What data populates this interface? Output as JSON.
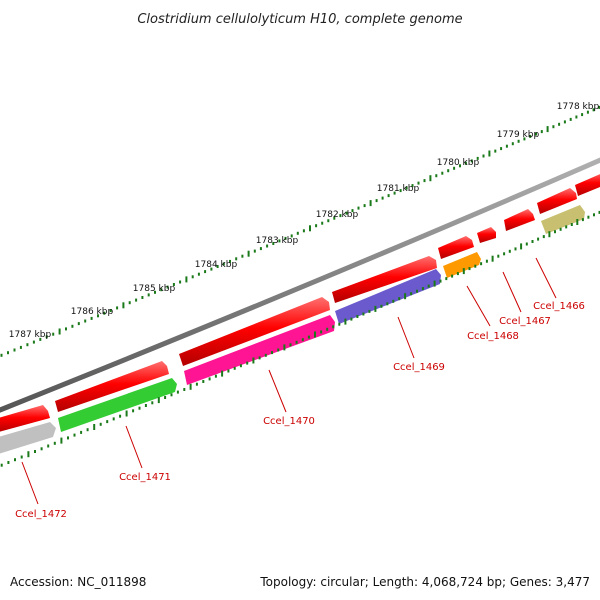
{
  "title": "Clostridium cellulolyticum H10, complete genome",
  "footer": {
    "accession": "Accession: NC_011898",
    "summary": "Topology: circular; Length: 4,068,724 bp; Genes: 3,477"
  },
  "ruler": {
    "labels": [
      "1778 kbp",
      "1779 kbp",
      "1780 kbp",
      "1781 kbp",
      "1782 kbp",
      "1783 kbp",
      "1784 kbp",
      "1785 kbp",
      "1786 kbp",
      "1787 kbp"
    ],
    "color": "#1a7a1a"
  },
  "colors": {
    "backbone": "#808080",
    "forward_gene": "#ff0000",
    "label": "#cc0000"
  },
  "genes": [
    {
      "label": "Ccel_1466",
      "color": "#c8bf70"
    },
    {
      "label": "Ccel_1467",
      "color": "#ff0000"
    },
    {
      "label": "Ccel_1468",
      "color": "#ff9900"
    },
    {
      "label": "Ccel_1469",
      "color": "#6a5acd"
    },
    {
      "label": "Ccel_1470",
      "color": "#ff1493"
    },
    {
      "label": "Ccel_1471",
      "color": "#33cc33"
    },
    {
      "label": "Ccel_1472",
      "color": "#c0c0c0"
    }
  ]
}
